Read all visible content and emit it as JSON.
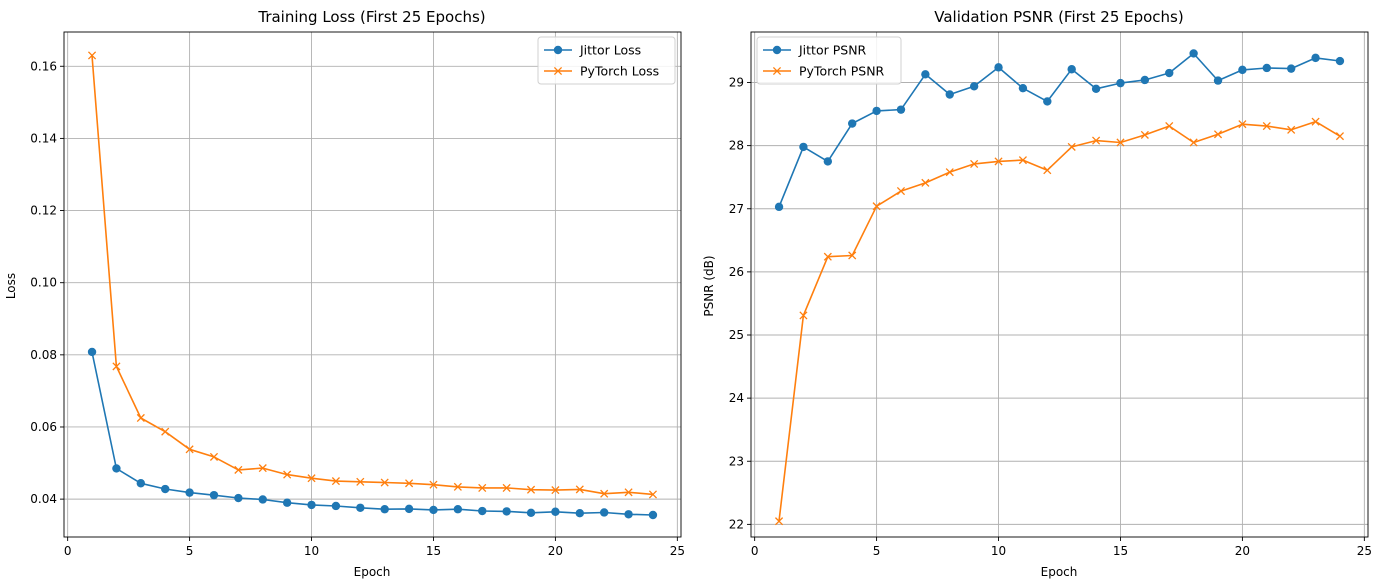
{
  "chart_data": [
    {
      "type": "line",
      "title": "Training Loss (First 25 Epochs)",
      "xlabel": "Epoch",
      "ylabel": "Loss",
      "xlim": [
        -0.15,
        25.15
      ],
      "ylim": [
        0.0295,
        0.1695
      ],
      "xticks": [
        0,
        5,
        10,
        15,
        20,
        25
      ],
      "yticks": [
        0.04,
        0.06,
        0.08,
        0.1,
        0.12,
        0.14,
        0.16
      ],
      "ytick_labels": [
        "0.04",
        "0.06",
        "0.08",
        "0.10",
        "0.12",
        "0.14",
        "0.16"
      ],
      "grid": true,
      "legend_position": "top-right",
      "x": [
        1,
        2,
        3,
        4,
        5,
        6,
        7,
        8,
        9,
        10,
        11,
        12,
        13,
        14,
        15,
        16,
        17,
        18,
        19,
        20,
        21,
        22,
        23,
        24
      ],
      "series": [
        {
          "name": "Jittor Loss",
          "color": "#1f77b4",
          "marker": "circle",
          "values": [
            0.0808,
            0.0485,
            0.0444,
            0.0428,
            0.0418,
            0.0411,
            0.0403,
            0.0399,
            0.039,
            0.0384,
            0.0381,
            0.0376,
            0.0372,
            0.0373,
            0.037,
            0.0372,
            0.0367,
            0.0366,
            0.0362,
            0.0365,
            0.0361,
            0.0363,
            0.0358,
            0.0356
          ]
        },
        {
          "name": "PyTorch Loss",
          "color": "#ff7f0e",
          "marker": "x",
          "values": [
            0.163,
            0.0768,
            0.0625,
            0.0587,
            0.0538,
            0.0517,
            0.0481,
            0.0486,
            0.0468,
            0.0458,
            0.045,
            0.0448,
            0.0446,
            0.0444,
            0.044,
            0.0434,
            0.0431,
            0.0431,
            0.0426,
            0.0425,
            0.0427,
            0.0415,
            0.0419,
            0.0413
          ]
        }
      ]
    },
    {
      "type": "line",
      "title": "Validation PSNR (First 25 Epochs)",
      "xlabel": "Epoch",
      "ylabel": "PSNR (dB)",
      "xlim": [
        -0.15,
        25.15
      ],
      "ylim": [
        21.8,
        29.8
      ],
      "xticks": [
        0,
        5,
        10,
        15,
        20,
        25
      ],
      "yticks": [
        22,
        23,
        24,
        25,
        26,
        27,
        28,
        29
      ],
      "ytick_labels": [
        "22",
        "23",
        "24",
        "25",
        "26",
        "27",
        "28",
        "29"
      ],
      "grid": true,
      "legend_position": "top-left",
      "x": [
        1,
        2,
        3,
        4,
        5,
        6,
        7,
        8,
        9,
        10,
        11,
        12,
        13,
        14,
        15,
        16,
        17,
        18,
        19,
        20,
        21,
        22,
        23,
        24
      ],
      "series": [
        {
          "name": "Jittor PSNR",
          "color": "#1f77b4",
          "marker": "circle",
          "values": [
            27.03,
            27.98,
            27.75,
            28.35,
            28.55,
            28.57,
            29.13,
            28.81,
            28.94,
            29.24,
            28.91,
            28.7,
            29.21,
            28.9,
            28.99,
            29.04,
            29.15,
            29.46,
            29.03,
            29.2,
            29.23,
            29.22,
            29.39,
            29.34
          ]
        },
        {
          "name": "PyTorch PSNR",
          "color": "#ff7f0e",
          "marker": "x",
          "values": [
            22.05,
            25.31,
            26.24,
            26.26,
            27.04,
            27.28,
            27.41,
            27.58,
            27.71,
            27.75,
            27.77,
            27.61,
            27.98,
            28.08,
            28.05,
            28.17,
            28.31,
            28.05,
            28.18,
            28.34,
            28.31,
            28.25,
            28.38,
            28.15
          ]
        }
      ]
    }
  ]
}
